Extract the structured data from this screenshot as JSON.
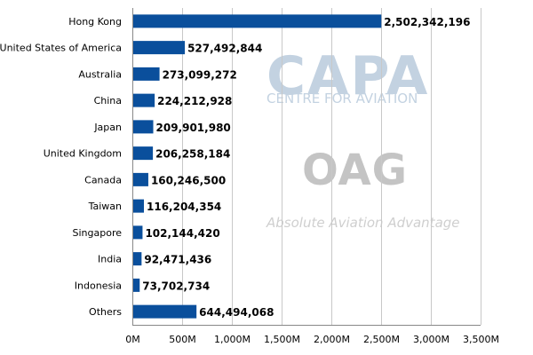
{
  "chart_data": {
    "type": "bar",
    "orientation": "horizontal",
    "categories": [
      "Hong Kong",
      "United States of America",
      "Australia",
      "China",
      "Japan",
      "United Kingdom",
      "Canada",
      "Taiwan",
      "Singapore",
      "India",
      "Indonesia",
      "Others"
    ],
    "values": [
      2502342196,
      527492844,
      273099272,
      224212928,
      209901980,
      206258184,
      160246500,
      116204354,
      102144420,
      92471436,
      73702734,
      644494068
    ],
    "value_labels": [
      "2,502,342,196",
      "527,492,844",
      "273,099,272",
      "224,212,928",
      "209,901,980",
      "206,258,184",
      "160,246,500",
      "116,204,354",
      "102,144,420",
      "92,471,436",
      "73,702,734",
      "644,494,068"
    ],
    "x_ticks": [
      0,
      500000000,
      1000000000,
      1500000000,
      2000000000,
      2500000000,
      3000000000,
      3500000000
    ],
    "x_tick_labels": [
      "0M",
      "500M",
      "1,000M",
      "1,500M",
      "2,000M",
      "2,500M",
      "3,000M",
      "3,500M"
    ],
    "xlim": [
      0,
      3500000000
    ],
    "grid": "vertical",
    "legend": "none",
    "bar_color": "#0a4f9c",
    "title": "",
    "xlabel": "",
    "ylabel": ""
  },
  "watermarks": {
    "capa": "CAPA",
    "capa_sub": "CENTRE FOR AVIATION",
    "oag": "OAG",
    "oag_sub": "Absolute Aviation Advantage"
  }
}
